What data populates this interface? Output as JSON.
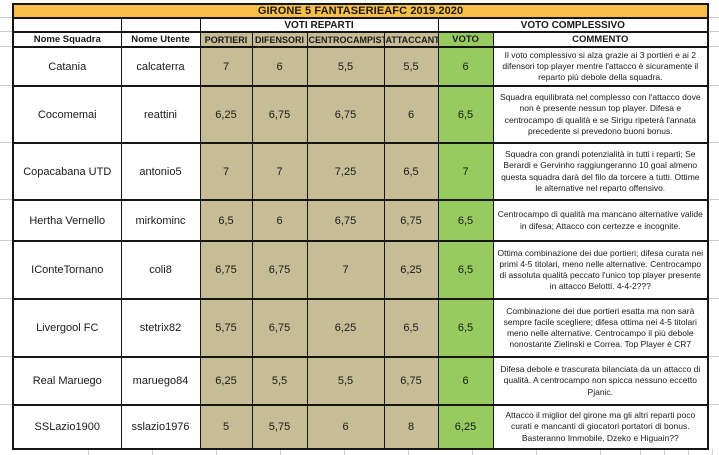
{
  "sheet": {
    "title": "GIRONE 5 FANTASERIEAFC 2019.2020",
    "group_headers": {
      "voti_reparti": "VOTI REPARTI",
      "voto_complessivo": "VOTO COMPLESSIVO"
    },
    "columns": {
      "squadra": "Nome Squadra",
      "utente": "Nome Utente",
      "portieri": "PORTIERI",
      "difensori": "DIFENSORI",
      "centrocampisti": "CENTROCAMPISTI",
      "attaccanti": "ATTACCANTI",
      "voto": "VOTO",
      "commento": "COMMENTO"
    },
    "rows": [
      {
        "squadra": "Catania",
        "utente": "calcaterra",
        "portieri": "7",
        "difensori": "6",
        "centrocampisti": "5,5",
        "attaccanti": "5,5",
        "voto": "6",
        "commento": "Il voto complessivo si alza grazie ai 3 portieri e ai 2 difensori top player mentre l'attacco è sicuramente il reparto più debole della squadra."
      },
      {
        "squadra": "Cocomemai",
        "utente": "reattini",
        "portieri": "6,25",
        "difensori": "6,75",
        "centrocampisti": "6,75",
        "attaccanti": "6",
        "voto": "6,5",
        "commento": "Squadra equilibrata nel complesso con l'attacco dove non è presente nessun top player. Difesa e centrocampo di qualità e se Sirigu ripeterà l'annata precedente si prevedono buoni bonus."
      },
      {
        "squadra": "Copacabana UTD",
        "utente": "antonio5",
        "portieri": "7",
        "difensori": "7",
        "centrocampisti": "7,25",
        "attaccanti": "6,5",
        "voto": "7",
        "commento": "Squadra con grandi potenzialità in tutti i reparti; Se Berardi e Gervinho raggiungeranno 10 goal almeno questa squadra darà del filo da torcere a tutti. Ottime le alternative nel reparto offensivo."
      },
      {
        "squadra": "Hertha Vernello",
        "utente": "mirkominc",
        "portieri": "6,5",
        "difensori": "6",
        "centrocampisti": "6,75",
        "attaccanti": "6,75",
        "voto": "6,5",
        "commento": "Centrocampo di qualità ma mancano alternative valide in difesa;  Attacco con certezze e incognite."
      },
      {
        "squadra": "IConteTornano",
        "utente": "coli8",
        "portieri": "6,75",
        "difensori": "6,75",
        "centrocampisti": "7",
        "attaccanti": "6,25",
        "voto": "6,5",
        "commento": "Ottima combinazione dei due portieri; difesa curata nei primi 4-5 titolari, meno nelle alternative. Centrocampo di assoluta qualità peccato l'unico top player presente in attacco Belotti. 4-4-2???"
      },
      {
        "squadra": "Livergool FC",
        "utente": "stetrix82",
        "portieri": "5,75",
        "difensori": "6,75",
        "centrocampisti": "6,25",
        "attaccanti": "6,5",
        "voto": "6,5",
        "commento": "Combinazione dei due portieri esatta ma non sarà sempre facile scegliere; difesa ottima nei 4-5 titolari meno nelle alternative. Centrocampo il più debole nonostante Zielinski e Correa. Top Player è CR7"
      },
      {
        "squadra": "Real Maruego",
        "utente": "maruego84",
        "portieri": "6,25",
        "difensori": "5,5",
        "centrocampisti": "5,5",
        "attaccanti": "6,75",
        "voto": "6",
        "commento": "Difesa debole e trascurata bilanciata da un attacco di qualità. A centrocampo non spicca nessuno eccetto Pjanic."
      },
      {
        "squadra": "SSLazio1900",
        "utente": "sslazio1976",
        "portieri": "5",
        "difensori": "5,75",
        "centrocampisti": "6",
        "attaccanti": "8",
        "voto": "6,25",
        "commento": "Attacco il miglior del girone ma gli altri reparti poco curati e mancanti di giocatori portatori di bonus. Basteranno Immobile, Dzeko e Higuain??"
      }
    ]
  },
  "colors": {
    "title_bg": "#F7BE4A",
    "reparto_bg": "#C6BD97",
    "voto_bg": "#97CA5F",
    "border": "#151515",
    "gridline": "#cfcfcf"
  }
}
